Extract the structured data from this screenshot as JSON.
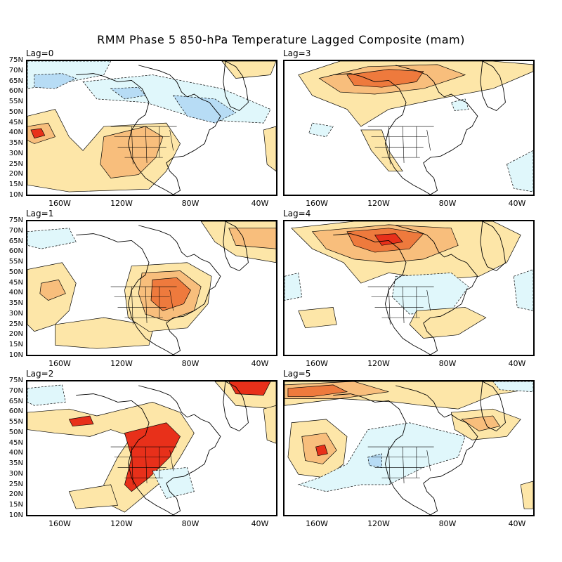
{
  "title": "RMM Phase 5 850-hPa Temperature Lagged Composite (mam)",
  "lat_labels": [
    "75N",
    "70N",
    "65N",
    "60N",
    "55N",
    "50N",
    "45N",
    "40N",
    "35N",
    "30N",
    "25N",
    "20N",
    "15N",
    "10N"
  ],
  "lon_labels": [
    "160W",
    "120W",
    "80W",
    "40W"
  ],
  "colors": {
    "warm_light": "#fde6a8",
    "warm_mid": "#f8be7c",
    "warm_strong": "#ee7a3d",
    "warm_max": "#e8301a",
    "cool_light": "#e0f7fb",
    "cool_mid": "#b7dcf5",
    "cool_strong": "#8ec2ec",
    "land": "#ffffff",
    "coast": "#000000"
  },
  "panels": [
    {
      "label": "Lag=0"
    },
    {
      "label": "Lag=3"
    },
    {
      "label": "Lag=1"
    },
    {
      "label": "Lag=4"
    },
    {
      "label": "Lag=2"
    },
    {
      "label": "Lag=5"
    }
  ]
}
